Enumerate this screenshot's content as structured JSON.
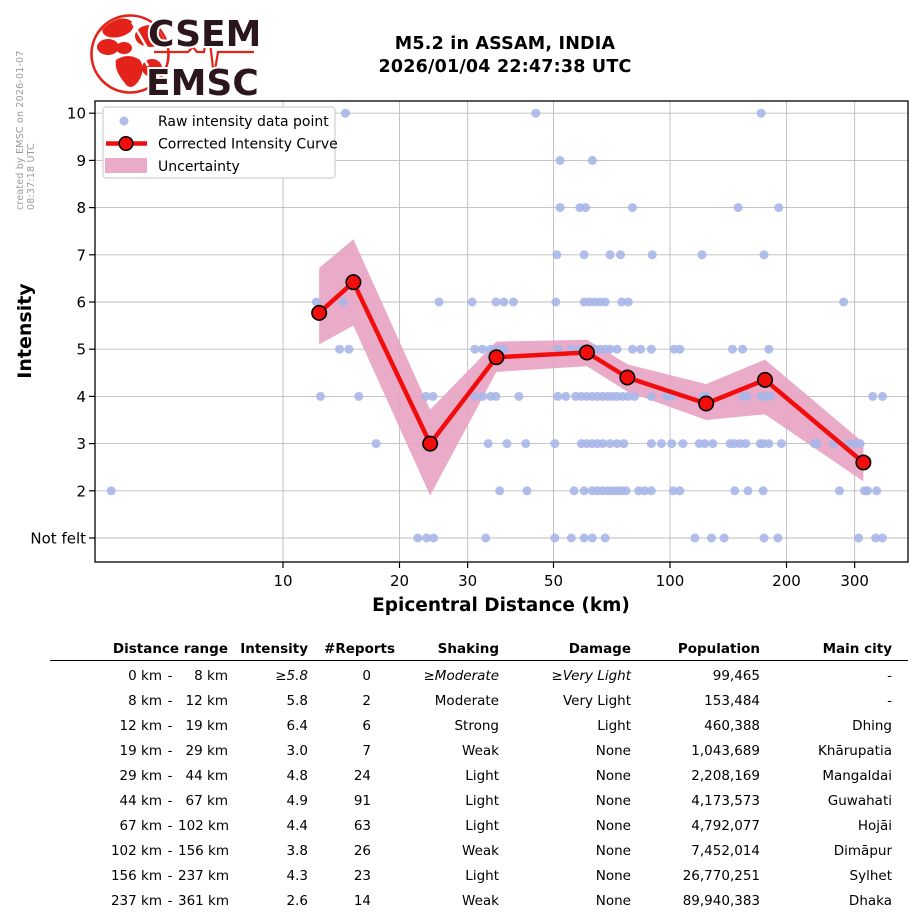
{
  "meta": {
    "created_by": "created by EMSC on 2026-01-07 08:37:18 UTC"
  },
  "logo": {
    "org_top": "CSEM",
    "org_bottom": "EMSC",
    "red": "#e3231a",
    "dark": "#2b161b"
  },
  "header": {
    "title_line1": "M5.2 in ASSAM, INDIA",
    "title_line2": "2026/01/04 22:47:38 UTC"
  },
  "chart_data": {
    "type": "scatter",
    "x_scale": "log",
    "xlabel": "Epicentral Distance (km)",
    "ylabel": "Intensity",
    "x_ticks": [
      10,
      20,
      30,
      50,
      100,
      200,
      300
    ],
    "x_range_km": [
      3.2,
      407
    ],
    "y_ticks": [
      {
        "value": 1,
        "label": "Not felt"
      },
      {
        "value": 2,
        "label": "2"
      },
      {
        "value": 3,
        "label": "3"
      },
      {
        "value": 4,
        "label": "4"
      },
      {
        "value": 5,
        "label": "5"
      },
      {
        "value": 6,
        "label": "6"
      },
      {
        "value": 7,
        "label": "7"
      },
      {
        "value": 8,
        "label": "8"
      },
      {
        "value": 9,
        "label": "9"
      },
      {
        "value": 10,
        "label": "10"
      }
    ],
    "grid": true,
    "legend_position": "upper left",
    "legend": [
      {
        "label": "Raw intensity data point",
        "marker": "dot"
      },
      {
        "label": "Corrected Intensity Curve",
        "marker": "line"
      },
      {
        "label": "Uncertainty",
        "marker": "patch"
      }
    ],
    "colors": {
      "raw_point": "#a9b6e8",
      "curve": "#f20d0d",
      "marker_edge": "#000000",
      "band": "#e7a4c3",
      "grid": "#bdbdbd",
      "border": "#000000"
    },
    "raw_points": [
      {
        "intensity": 10,
        "km": [
          14.5,
          45,
          172
        ]
      },
      {
        "intensity": 9,
        "km": [
          52,
          63
        ]
      },
      {
        "intensity": 8,
        "km": [
          52,
          58.5,
          60.5,
          80,
          150,
          191
        ]
      },
      {
        "intensity": 7,
        "km": [
          51,
          60,
          70,
          74.5,
          90,
          121,
          175
        ]
      },
      {
        "intensity": 6,
        "km": [
          12.2,
          14.3,
          25.3,
          30.8,
          35.5,
          37.2,
          39.4,
          50.7,
          60,
          62,
          64,
          66,
          68,
          75,
          78,
          281
        ]
      },
      {
        "intensity": 5,
        "km": [
          14,
          14.8,
          31.3,
          32.8,
          34.4,
          35.9,
          37.2,
          51.3,
          55.6,
          58.3,
          60,
          62,
          64,
          66,
          68,
          70,
          73,
          80,
          84,
          89.5,
          102.5,
          106,
          145,
          154,
          180
        ]
      },
      {
        "intensity": 4,
        "km": [
          12.5,
          15.7,
          23.4,
          24.4,
          31.3,
          32.8,
          34.4,
          35.5,
          40.7,
          51.3,
          53.8,
          57,
          59,
          61,
          63,
          65,
          67,
          69,
          71,
          73,
          75.5,
          78,
          81,
          89.5,
          98,
          101,
          122,
          124,
          154,
          158,
          172,
          177,
          182,
          334,
          354
        ]
      },
      {
        "intensity": 3,
        "km": [
          17.4,
          33.9,
          37.9,
          42.4,
          50.4,
          59,
          61,
          63,
          65,
          67,
          70,
          73,
          76,
          89.5,
          95,
          101,
          108,
          119,
          123,
          129,
          143,
          147,
          152,
          157,
          171,
          174,
          180,
          194,
          236,
          240,
          265,
          290,
          301,
          310
        ]
      },
      {
        "intensity": 2,
        "km": [
          3.6,
          36.3,
          42.7,
          56.5,
          60,
          63,
          65,
          67,
          69,
          71,
          73,
          75,
          77,
          83,
          86,
          89.5,
          102,
          106,
          147,
          159,
          174,
          274,
          318,
          324,
          342
        ]
      },
      {
        "intensity": 1,
        "km": [
          22.3,
          23.5,
          24.5,
          33.4,
          50.4,
          55.6,
          60,
          63,
          68,
          116,
          128,
          138,
          175,
          190,
          307,
          340,
          354
        ]
      }
    ],
    "corrected_curve": [
      {
        "km": 12.4,
        "intensity": 5.77,
        "upper": 6.72,
        "lower": 5.1
      },
      {
        "km": 15.2,
        "intensity": 6.42,
        "upper": 7.33,
        "lower": 5.5
      },
      {
        "km": 24.0,
        "intensity": 3.0,
        "upper": 3.72,
        "lower": 1.9
      },
      {
        "km": 35.6,
        "intensity": 4.83,
        "upper": 5.16,
        "lower": 4.52
      },
      {
        "km": 61.0,
        "intensity": 4.93,
        "upper": 5.2,
        "lower": 4.64
      },
      {
        "km": 77.6,
        "intensity": 4.4,
        "upper": 4.68,
        "lower": 4.1
      },
      {
        "km": 124,
        "intensity": 3.85,
        "upper": 4.26,
        "lower": 3.5
      },
      {
        "km": 176,
        "intensity": 4.35,
        "upper": 4.78,
        "lower": 3.62
      },
      {
        "km": 316,
        "intensity": 2.6,
        "upper": 3.02,
        "lower": 2.2
      }
    ]
  },
  "table": {
    "columns": [
      "Distance range",
      "Intensity",
      "#Reports",
      "Shaking",
      "Damage",
      "Population",
      "Main city"
    ],
    "rows": [
      {
        "from": "0 km",
        "to": "8 km",
        "intensity": "≥5.8",
        "reports": "0",
        "shaking": "≥Moderate",
        "damage": "≥Very Light",
        "population": "99,465",
        "city": "-",
        "estimated": true
      },
      {
        "from": "8 km",
        "to": "12 km",
        "intensity": "5.8",
        "reports": "2",
        "shaking": "Moderate",
        "damage": "Very Light",
        "population": "153,484",
        "city": "-",
        "estimated": false
      },
      {
        "from": "12 km",
        "to": "19 km",
        "intensity": "6.4",
        "reports": "6",
        "shaking": "Strong",
        "damage": "Light",
        "population": "460,388",
        "city": "Dhing",
        "estimated": false
      },
      {
        "from": "19 km",
        "to": "29 km",
        "intensity": "3.0",
        "reports": "7",
        "shaking": "Weak",
        "damage": "None",
        "population": "1,043,689",
        "city": "Khārupatia",
        "estimated": false
      },
      {
        "from": "29 km",
        "to": "44 km",
        "intensity": "4.8",
        "reports": "24",
        "shaking": "Light",
        "damage": "None",
        "population": "2,208,169",
        "city": "Mangaldai",
        "estimated": false
      },
      {
        "from": "44 km",
        "to": "67 km",
        "intensity": "4.9",
        "reports": "91",
        "shaking": "Light",
        "damage": "None",
        "population": "4,173,573",
        "city": "Guwahati",
        "estimated": false
      },
      {
        "from": "67 km",
        "to": "102 km",
        "intensity": "4.4",
        "reports": "63",
        "shaking": "Light",
        "damage": "None",
        "population": "4,792,077",
        "city": "Hojāi",
        "estimated": false
      },
      {
        "from": "102 km",
        "to": "156 km",
        "intensity": "3.8",
        "reports": "26",
        "shaking": "Weak",
        "damage": "None",
        "population": "7,452,014",
        "city": "Dimāpur",
        "estimated": false
      },
      {
        "from": "156 km",
        "to": "237 km",
        "intensity": "4.3",
        "reports": "23",
        "shaking": "Light",
        "damage": "None",
        "population": "26,770,251",
        "city": "Sylhet",
        "estimated": false
      },
      {
        "from": "237 km",
        "to": "361 km",
        "intensity": "2.6",
        "reports": "14",
        "shaking": "Weak",
        "damage": "None",
        "population": "89,940,383",
        "city": "Dhaka",
        "estimated": false
      }
    ]
  }
}
